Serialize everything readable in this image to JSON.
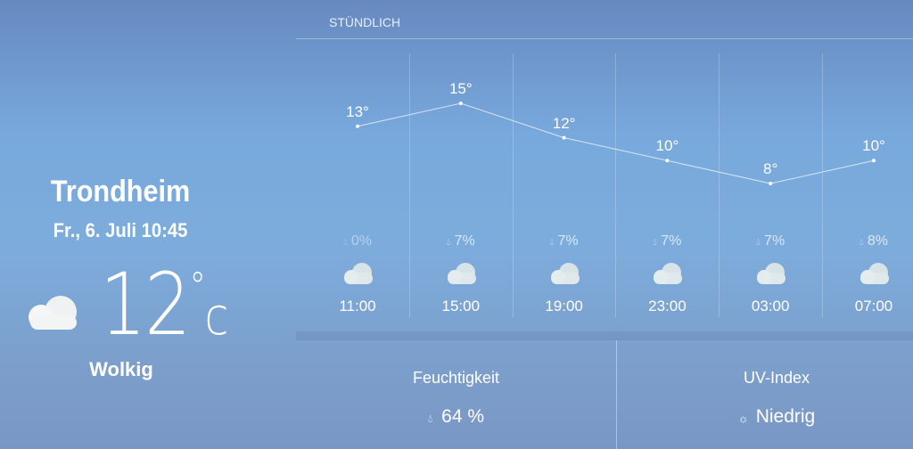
{
  "location": {
    "city": "Trondheim",
    "datetime": "Fr., 6. Juli 10:45",
    "temperature": "12",
    "degree": "°",
    "unit": "c",
    "condition": "Wolkig",
    "icon": "cloud-icon"
  },
  "hourly": {
    "title": "STÜNDLICH",
    "items": [
      {
        "time": "11:00",
        "temp": "13°",
        "temp_value": 13,
        "precip": "0%",
        "icon": "cloud-icon"
      },
      {
        "time": "15:00",
        "temp": "15°",
        "temp_value": 15,
        "precip": "7%",
        "icon": "cloud-icon"
      },
      {
        "time": "19:00",
        "temp": "12°",
        "temp_value": 12,
        "precip": "7%",
        "icon": "cloud-icon"
      },
      {
        "time": "23:00",
        "temp": "10°",
        "temp_value": 10,
        "precip": "7%",
        "icon": "cloud-icon"
      },
      {
        "time": "03:00",
        "temp": "8°",
        "temp_value": 8,
        "precip": "7%",
        "icon": "cloud-icon"
      },
      {
        "time": "07:00",
        "temp": "10°",
        "temp_value": 10,
        "precip": "8%",
        "icon": "cloud-icon"
      }
    ]
  },
  "details": {
    "humidity": {
      "label": "Feuchtigkeit",
      "value": "64 %",
      "icon": "humidity-icon"
    },
    "uv": {
      "label": "UV-Index",
      "value": "Niedrig",
      "icon": "uv-icon"
    }
  }
}
